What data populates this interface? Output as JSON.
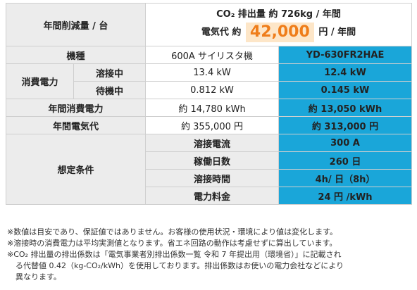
{
  "header": {
    "label": "年間削減量 / 台",
    "co2_text": "CO₂ 排出量 約 726kg / 年間",
    "cost_prefix": "電気代 約",
    "cost_value": "42,000",
    "cost_suffix": "円 / 年間"
  },
  "columns": {
    "label": "機種",
    "current": "600A サイリスタ機",
    "new": "YD-630FR2HAE"
  },
  "power": {
    "group_label": "消費電力",
    "welding": {
      "label": "溶接中",
      "current": "13.4 kW",
      "new": "12.4 kW"
    },
    "standby": {
      "label": "待機中",
      "current": "0.812 kW",
      "new": "0.145 kW"
    }
  },
  "annual_power": {
    "label": "年間消費電力",
    "current": "約 14,780 kWh",
    "new": "約 13,050 kWh"
  },
  "annual_cost": {
    "label": "年間電気代",
    "current": "約 355,000 円",
    "new": "約 313,000 円"
  },
  "conditions": {
    "group_label": "想定条件",
    "items": [
      {
        "label": "溶接電流",
        "value": "300 A"
      },
      {
        "label": "稼働日数",
        "value": "260 日"
      },
      {
        "label": "溶接時間",
        "value": "4h/ 日（8h）"
      },
      {
        "label": "電力料金",
        "value": "24 円 /kWh"
      }
    ]
  },
  "notes": {
    "line1": "※数値は目安であり、保証値ではありません。お客様の使用状況・環境により値は変化します。",
    "line2": "※溶接時の消費電力は平均実測値となります。省エネ回路の動作は考慮せずに算出しています。",
    "line3a": "※CO₂ 排出量の排出係数は「電気事業者別排出係数一覧 令和 7 年提出用（環境省）」に記載され",
    "line3b": "る代替値 0.42（kg-CO₂/kWh）を使用しております。排出係数はお使いの電力会社などにより",
    "line3c": "異なります。"
  }
}
